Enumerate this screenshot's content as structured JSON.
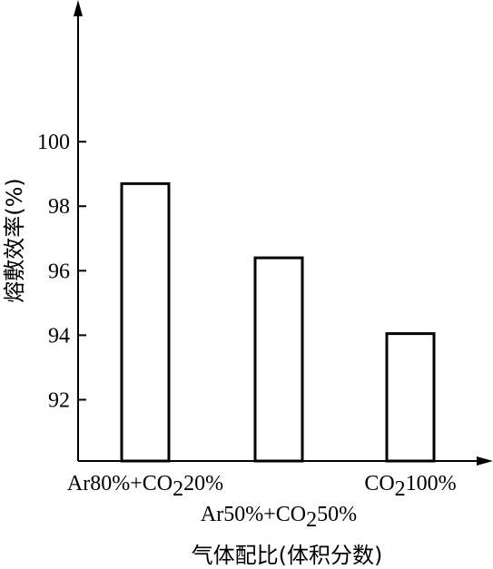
{
  "chart_data": {
    "type": "bar",
    "title": "",
    "xlabel": "气体配比(体积分数)",
    "ylabel": "熔敷效率(%)",
    "ylim": [
      90.1,
      104
    ],
    "yticks": [
      92,
      94,
      96,
      98,
      100
    ],
    "ytick_labels": [
      "92",
      "94",
      "96",
      "98",
      "100"
    ],
    "grid": false,
    "categories": [
      {
        "parts": [
          {
            "t": "Ar80%+CO"
          },
          {
            "t": "2",
            "sub": true
          },
          {
            "t": "20%"
          }
        ],
        "row": "upper"
      },
      {
        "parts": [
          {
            "t": "Ar50%+CO"
          },
          {
            "t": "2",
            "sub": true
          },
          {
            "t": "50%"
          }
        ],
        "row": "lower"
      },
      {
        "parts": [
          {
            "t": "CO"
          },
          {
            "t": "2",
            "sub": true
          },
          {
            "t": "100%"
          }
        ],
        "row": "upper"
      }
    ],
    "values": [
      98.7,
      96.4,
      94.05
    ],
    "colors": {
      "bar_fill": "#ffffff",
      "stroke": "#000000"
    }
  }
}
